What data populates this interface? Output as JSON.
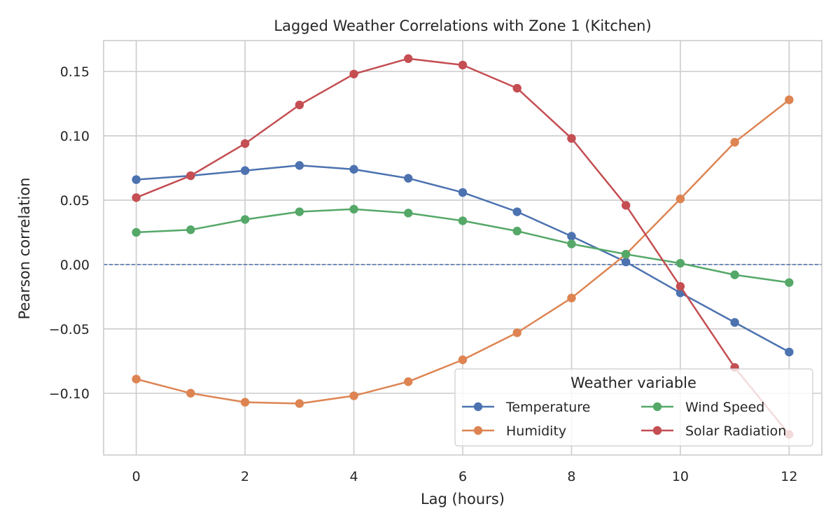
{
  "chart_data": {
    "type": "line",
    "title": "Lagged Weather Correlations with Zone 1 (Kitchen)",
    "xlabel": "Lag (hours)",
    "ylabel": "Pearson correlation",
    "x": [
      0,
      1,
      2,
      3,
      4,
      5,
      6,
      7,
      8,
      9,
      10,
      11,
      12
    ],
    "xlim": [
      -0.6,
      12.6
    ],
    "ylim": [
      -0.148,
      0.174
    ],
    "xticks": [
      0,
      2,
      4,
      6,
      8,
      10,
      12
    ],
    "xtick_labels": [
      "0",
      "2",
      "4",
      "6",
      "8",
      "10",
      "12"
    ],
    "yticks": [
      -0.1,
      -0.05,
      0.0,
      0.05,
      0.1,
      0.15
    ],
    "ytick_labels": [
      "−0.10",
      "−0.05",
      "0.00",
      "0.05",
      "0.10",
      "0.15"
    ],
    "grid": true,
    "reference_line": {
      "y": 0.0,
      "style": "dashed",
      "color": "#4C72B0"
    },
    "legend": {
      "title": "Weather variable",
      "placement": "lower-right",
      "columns": 2,
      "order": [
        "Temperature",
        "Humidity",
        "Wind Speed",
        "Solar Radiation"
      ]
    },
    "series": [
      {
        "name": "Temperature",
        "color": "#4C72B0",
        "values": [
          0.066,
          0.069,
          0.073,
          0.077,
          0.074,
          0.067,
          0.056,
          0.041,
          0.022,
          0.002,
          -0.022,
          -0.045,
          -0.068
        ]
      },
      {
        "name": "Humidity",
        "color": "#DD8452",
        "values": [
          -0.089,
          -0.1,
          -0.107,
          -0.108,
          -0.102,
          -0.091,
          -0.074,
          -0.053,
          -0.026,
          0.008,
          0.051,
          0.095,
          0.128
        ]
      },
      {
        "name": "Wind Speed",
        "color": "#55A868",
        "values": [
          0.025,
          0.027,
          0.035,
          0.041,
          0.043,
          0.04,
          0.034,
          0.026,
          0.016,
          0.008,
          0.001,
          -0.008,
          -0.014
        ]
      },
      {
        "name": "Solar Radiation",
        "color": "#C44E52",
        "values": [
          0.052,
          0.069,
          0.094,
          0.124,
          0.148,
          0.16,
          0.155,
          0.137,
          0.098,
          0.046,
          -0.017,
          -0.08,
          -0.132
        ]
      }
    ]
  }
}
